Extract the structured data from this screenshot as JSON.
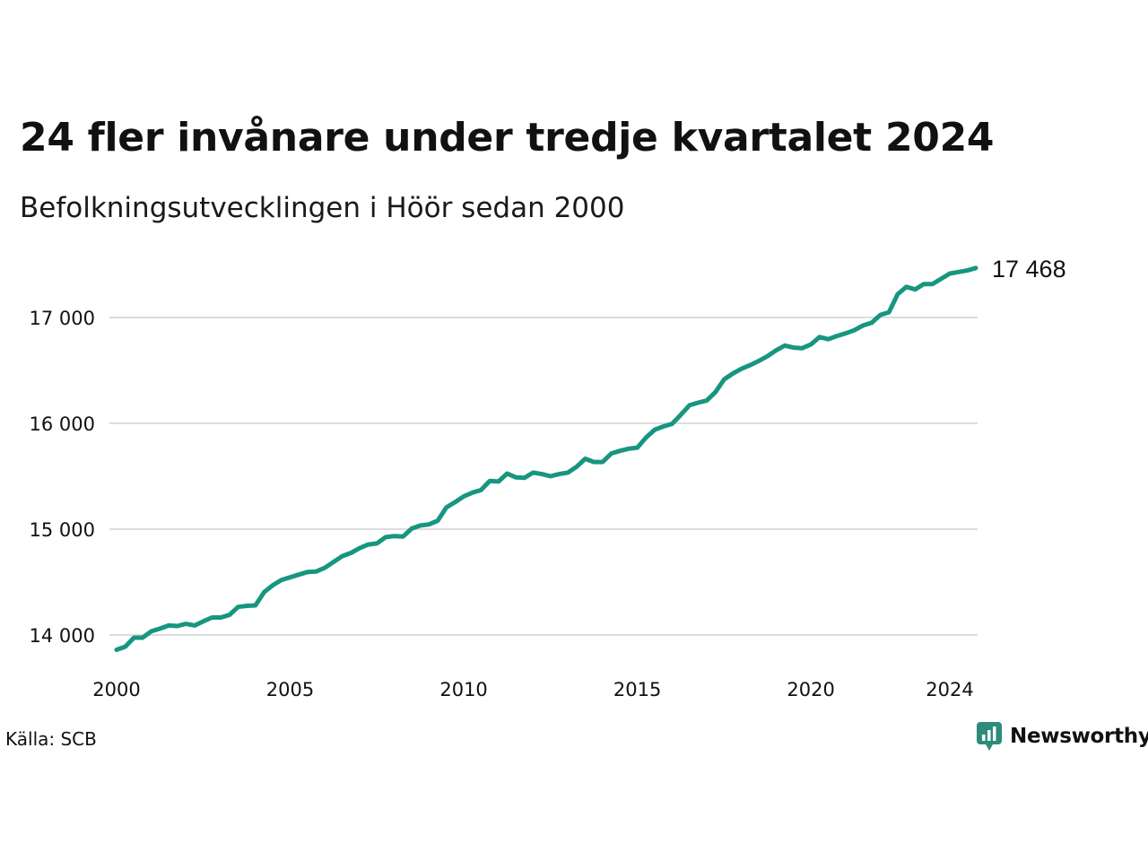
{
  "title": "24 fler invånare under tredje kvartalet 2024",
  "subtitle": "Befolkningsutvecklingen i Höör sedan 2000",
  "source": "Källa: SCB",
  "brand": {
    "name": "Newsworthy",
    "icon": "newsworthy-logo-icon",
    "color": "#2e8b7a"
  },
  "colors": {
    "line": "#17967f",
    "grid": "#dddddd",
    "tick_text": "#111111"
  },
  "chart_data": {
    "type": "line",
    "title": "24 fler invånare under tredje kvartalet 2024",
    "subtitle": "Befolkningsutvecklingen i Höör sedan 2000",
    "xlabel": "",
    "ylabel": "",
    "xlim": [
      2000,
      2024.75
    ],
    "ylim": [
      13850,
      17550
    ],
    "xticks": [
      2000,
      2005,
      2010,
      2015,
      2020,
      2024
    ],
    "xtick_labels": [
      "2000",
      "2005",
      "2010",
      "2015",
      "2020",
      "2024"
    ],
    "yticks": [
      14000,
      15000,
      16000,
      17000
    ],
    "ytick_labels": [
      "14 000",
      "15 000",
      "16 000",
      "17 000"
    ],
    "grid": "horizontal",
    "last_value_label": "17 468",
    "series": [
      {
        "color": "#17967f",
        "x": [
          2000.0,
          2000.25,
          2000.5,
          2000.75,
          2001.0,
          2001.25,
          2001.5,
          2001.75,
          2002.0,
          2002.25,
          2002.5,
          2002.75,
          2003.0,
          2003.25,
          2003.5,
          2003.75,
          2004.0,
          2004.25,
          2004.5,
          2004.75,
          2005.0,
          2005.25,
          2005.5,
          2005.75,
          2006.0,
          2006.25,
          2006.5,
          2006.75,
          2007.0,
          2007.25,
          2007.5,
          2007.75,
          2008.0,
          2008.25,
          2008.5,
          2008.75,
          2009.0,
          2009.25,
          2009.5,
          2009.75,
          2010.0,
          2010.25,
          2010.5,
          2010.75,
          2011.0,
          2011.25,
          2011.5,
          2011.75,
          2012.0,
          2012.25,
          2012.5,
          2012.75,
          2013.0,
          2013.25,
          2013.5,
          2013.75,
          2014.0,
          2014.25,
          2014.5,
          2014.75,
          2015.0,
          2015.25,
          2015.5,
          2015.75,
          2016.0,
          2016.25,
          2016.5,
          2016.75,
          2017.0,
          2017.25,
          2017.5,
          2017.75,
          2018.0,
          2018.25,
          2018.5,
          2018.75,
          2019.0,
          2019.25,
          2019.5,
          2019.75,
          2020.0,
          2020.25,
          2020.5,
          2020.75,
          2021.0,
          2021.25,
          2021.5,
          2021.75,
          2022.0,
          2022.25,
          2022.5,
          2022.75,
          2023.0,
          2023.25,
          2023.5,
          2023.75,
          2024.0,
          2024.25,
          2024.5,
          2024.75
        ],
        "values": [
          13860,
          13890,
          13975,
          13975,
          14035,
          14060,
          14090,
          14085,
          14105,
          14090,
          14130,
          14165,
          14165,
          14190,
          14265,
          14275,
          14280,
          14405,
          14470,
          14520,
          14545,
          14570,
          14595,
          14600,
          14635,
          14690,
          14745,
          14775,
          14820,
          14855,
          14865,
          14925,
          14935,
          14930,
          15005,
          15035,
          15045,
          15080,
          15205,
          15255,
          15310,
          15345,
          15370,
          15455,
          15450,
          15525,
          15490,
          15485,
          15535,
          15520,
          15500,
          15520,
          15535,
          15590,
          15665,
          15635,
          15635,
          15715,
          15740,
          15760,
          15770,
          15865,
          15940,
          15970,
          15995,
          16080,
          16170,
          16195,
          16215,
          16295,
          16415,
          16470,
          16515,
          16550,
          16590,
          16635,
          16690,
          16735,
          16715,
          16710,
          16745,
          16815,
          16795,
          16825,
          16850,
          16880,
          16925,
          16950,
          17025,
          17050,
          17220,
          17290,
          17265,
          17315,
          17315,
          17365,
          17415,
          17430,
          17444,
          17468
        ]
      }
    ]
  }
}
